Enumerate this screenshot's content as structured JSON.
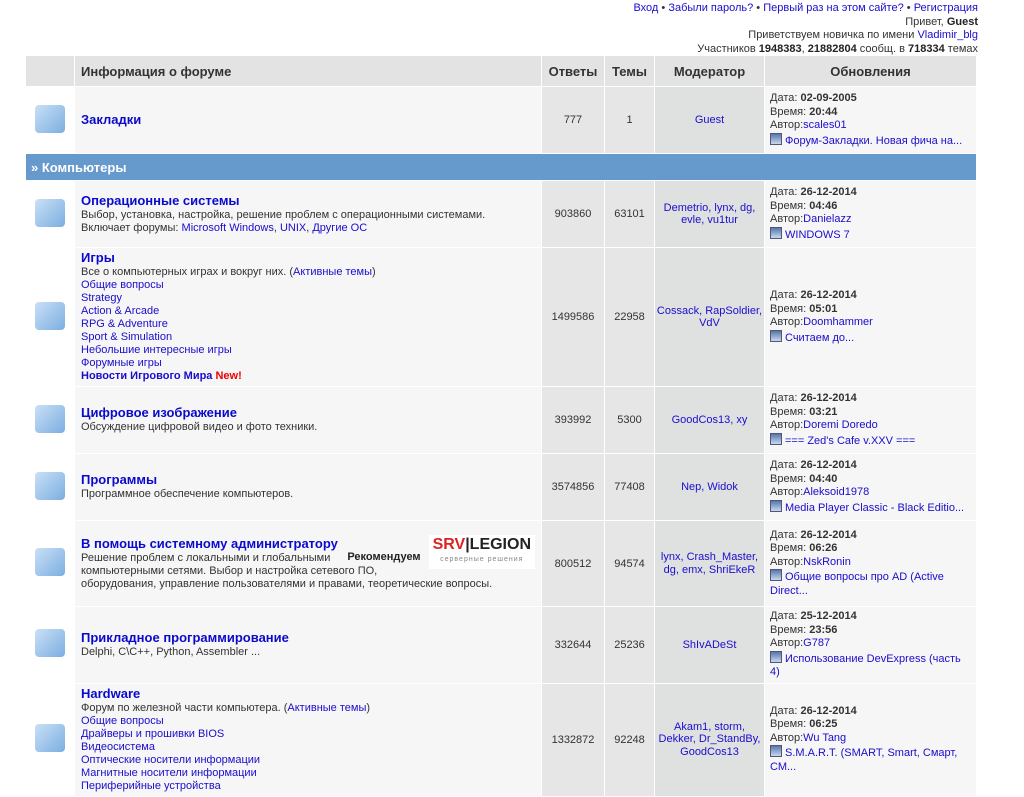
{
  "top": {
    "login": "Вход",
    "forgot": "Забыли пароль?",
    "first": "Первый раз на этом сайте?",
    "register": "Регистрация",
    "hello": "Привет,",
    "user": "Guest",
    "welcome": "Приветствуем новичка по имени",
    "newbie": "Vladimir_blg",
    "members_label": "Участников",
    "members": "1948383",
    "posts": "21882804",
    "posts_label": "сообщ. в",
    "topics": "718334",
    "topics_label": "темах"
  },
  "headers": {
    "info": "Информация о форуме",
    "answers": "Ответы",
    "topics": "Темы",
    "moderator": "Модератор",
    "updates": "Обновления"
  },
  "labels": {
    "date": "Дата:",
    "time": "Время:",
    "author": "Автор:"
  },
  "category": "» Компьютеры",
  "forums": [
    {
      "icon": "bookmarks-icon",
      "title": "Закладки",
      "desc": "",
      "links": [],
      "answers": "777",
      "topics": "1",
      "moderators": "Guest",
      "date": "02-09-2005",
      "time": "20:44",
      "author": "scales01",
      "last": "Форум-Закладки. Новая фича на..."
    },
    {
      "icon": "penguin-icon",
      "title": "Операционные системы",
      "desc": "Выбор, установка, настройка, решение проблем с операционными системами.",
      "includes": "Включает форумы:",
      "subs": [
        "Microsoft Windows",
        "UNIX",
        "Другие ОС"
      ],
      "links": [],
      "answers": "903860",
      "topics": "63101",
      "moderators": "Demetrio, lynx, dg, evle, vu1tur",
      "date": "26-12-2014",
      "time": "04:46",
      "author": "Danielazz",
      "last": "WINDOWS 7"
    },
    {
      "icon": "teddy-bear-icon",
      "title": "Игры",
      "desc": "Все о компьютерных играх и вокруг них. (",
      "active": "Активные темы",
      "links": [
        "Общие вопросы",
        "Strategy",
        "Action & Arcade",
        "RPG & Adventure",
        "Sport & Simulation",
        "Небольшие интересные игры",
        "Форумные игры"
      ],
      "news": "Новости Игрового Мира",
      "new": "New!",
      "answers": "1499586",
      "topics": "22958",
      "moderators": "Cossack, RapSoldier, VdV",
      "date": "26-12-2014",
      "time": "05:01",
      "author": "Doomhammer",
      "last": "Считаем до..."
    },
    {
      "icon": "camera-icon",
      "title": "Цифровое изображение",
      "desc": "Обсуждение цифровой видео и фото техники.",
      "links": [],
      "answers": "393992",
      "topics": "5300",
      "moderators": "GoodCos13, xy",
      "date": "26-12-2014",
      "time": "03:21",
      "author": "Doremi Doredo",
      "last": "=== Zed's Cafe v.XXV ==="
    },
    {
      "icon": "programs-icon",
      "title": "Программы",
      "desc": "Программное обеспечение компьютеров.",
      "links": [],
      "answers": "3574856",
      "topics": "77408",
      "moderators": "Nep, Widok",
      "date": "26-12-2014",
      "time": "04:40",
      "author": "Aleksoid1978",
      "last": "Media Player Classic - Black Editio..."
    },
    {
      "icon": "monitor-icon",
      "title": "В помощь системному администратору",
      "recommend": "Рекомендуем",
      "logo": "SRV|LEGION",
      "logo_sub": "серверные решения",
      "desc": "Решение проблем с локальными и глобальными компьютерными сетями. Выбор и настройка сетевого ПО, оборудования, управление пользователями и правами, теоретические вопросы.",
      "links": [],
      "answers": "800512",
      "topics": "94574",
      "moderators": "lynx, Crash_Master, dg, emx, ShriEkeR",
      "date": "26-12-2014",
      "time": "06:26",
      "author": "NskRonin",
      "last": "Общие вопросы про AD (Active Direct..."
    },
    {
      "icon": "code-document-icon",
      "title": "Прикладное программирование",
      "desc": "Delphi, C\\C++, Python, Assembler ...",
      "links": [],
      "answers": "332644",
      "topics": "25236",
      "moderators": "ShIvADeSt",
      "date": "25-12-2014",
      "time": "23:56",
      "author": "G787",
      "last": "Использование DevExpress (часть 4)"
    },
    {
      "icon": "circuit-board-icon",
      "title": "Hardware",
      "desc": "Форум по железной части компьютера. (",
      "active": "Активные темы",
      "links": [
        "Общие вопросы",
        "Драйверы и прошивки BIOS",
        "Видеосистема",
        "Оптические носители информации",
        "Магнитные носители информации",
        "Периферийные устройства"
      ],
      "answers": "1332872",
      "topics": "92248",
      "moderators": "Akam1, storm, Dekker, Dr_StandBy, GoodCos13",
      "date": "26-12-2014",
      "time": "06:25",
      "author": "Wu Tang",
      "last": "S.M.A.R.T. (SMART, Smart, Смарт, СМ..."
    }
  ]
}
